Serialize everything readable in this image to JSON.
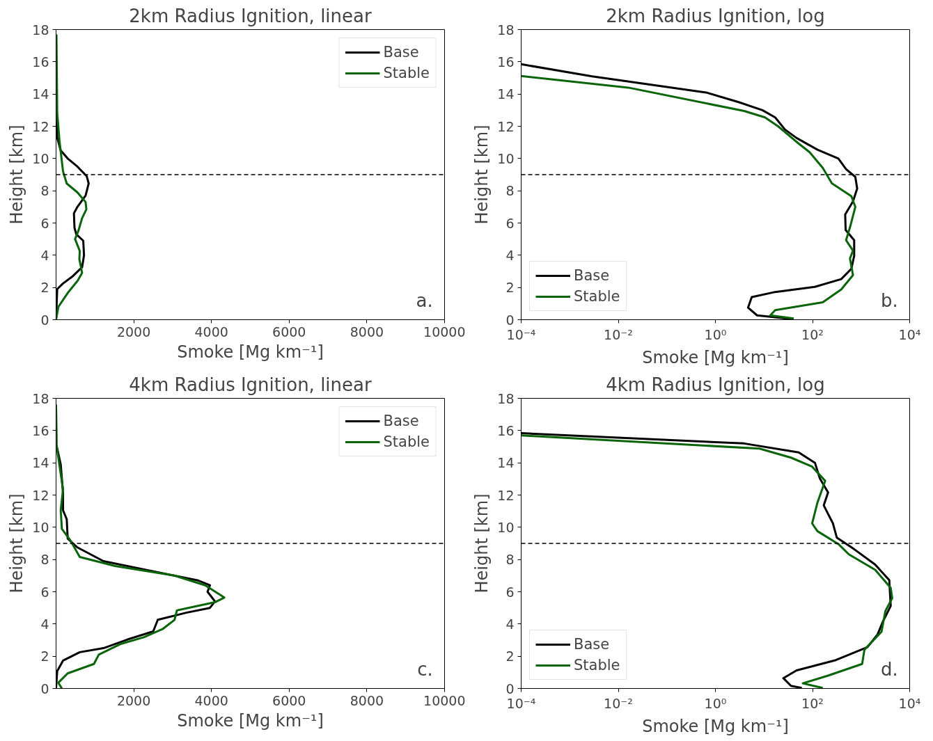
{
  "chart_data": [
    {
      "type": "line",
      "title": "2km Radius Ignition, linear",
      "xlabel": "Smoke [Mg km⁻¹]",
      "ylabel": "Height [km]",
      "xlim": [
        0,
        10000
      ],
      "xticks": [
        2000,
        4000,
        6000,
        8000,
        10000
      ],
      "ylim": [
        0,
        18
      ],
      "yticks": [
        0,
        2,
        4,
        6,
        8,
        10,
        12,
        14,
        16,
        18
      ],
      "legend": "top right",
      "annotations": [
        "a."
      ],
      "ref_lines": [
        {
          "axis": "y",
          "value": 9,
          "color": "#000000",
          "line_style": "dashed"
        }
      ],
      "series": [
        {
          "name": "Base",
          "color": "#000000",
          "x": [
            0,
            10,
            30,
            120,
            300,
            550,
            790,
            840,
            760,
            550,
            460,
            475,
            520,
            700,
            720,
            670,
            430,
            180,
            30,
            0
          ],
          "values": [
            17.5,
            13,
            11.3,
            10.5,
            10.0,
            9.5,
            8.9,
            8.45,
            7.7,
            7.0,
            6.6,
            5.7,
            5.3,
            4.9,
            4.0,
            3.25,
            2.7,
            2.25,
            1.9,
            0
          ]
        },
        {
          "name": "Stable",
          "color": "#0a640a",
          "x": [
            10,
            30,
            90,
            180,
            275,
            550,
            760,
            780,
            670,
            580,
            490,
            610,
            600,
            670,
            550,
            300,
            60,
            0
          ],
          "values": [
            17.7,
            12.8,
            11.05,
            9.2,
            8.45,
            7.9,
            7.3,
            6.85,
            6.3,
            5.55,
            5.0,
            4.26,
            3.76,
            2.9,
            2.4,
            1.66,
            0.8,
            0
          ]
        }
      ]
    },
    {
      "type": "line",
      "title": "2km Radius Ignition, log",
      "xlabel": "Smoke [Mg km⁻¹]",
      "ylabel": "Height [km]",
      "log": "x",
      "xlim": [
        0.0001,
        10000
      ],
      "xticks": [
        {
          "value": 0.0001,
          "label": "10⁻⁴"
        },
        {
          "value": 0.01,
          "label": "10⁻²"
        },
        {
          "value": 1,
          "label": "10⁰"
        },
        {
          "value": 100,
          "label": "10²"
        },
        {
          "value": 10000,
          "label": "10⁴"
        }
      ],
      "ylim": [
        0,
        18
      ],
      "yticks": [
        0,
        2,
        4,
        6,
        8,
        10,
        12,
        14,
        16,
        18
      ],
      "legend": "bottom left",
      "annotations": [
        "b."
      ],
      "ref_lines": [
        {
          "axis": "y",
          "value": 9,
          "color": "#000000",
          "line_style": "dashed"
        }
      ],
      "series": [
        {
          "name": "Base",
          "color": "#000000",
          "x": [
            0.0001,
            0.0029,
            0.68,
            3.0,
            9.3,
            17,
            27,
            47,
            126,
            340,
            490,
            760,
            830,
            680,
            470,
            480,
            720,
            720,
            630,
            390,
            112,
            17,
            5.6,
            4.7,
            7.2,
            41
          ],
          "values": [
            15.85,
            15.1,
            14.08,
            13.5,
            13.0,
            12.55,
            11.8,
            11.27,
            10.55,
            10.0,
            9.34,
            8.86,
            8.14,
            7.34,
            6.53,
            5.57,
            4.93,
            3.96,
            3.16,
            2.52,
            2.04,
            1.72,
            1.4,
            0.75,
            0.27,
            0.03
          ]
        },
        {
          "name": "Stable",
          "color": "#0a640a",
          "x": [
            0.0001,
            0.016,
            3.9,
            10.5,
            19.5,
            47,
            87,
            162,
            250,
            630,
            760,
            590,
            490,
            680,
            590,
            680,
            390,
            162,
            17,
            13.5,
            41
          ],
          "values": [
            15.12,
            14.4,
            12.95,
            12.55,
            12.0,
            11.03,
            10.39,
            9.42,
            8.46,
            7.66,
            7.0,
            5.73,
            4.93,
            4.29,
            3.8,
            2.76,
            1.88,
            1.08,
            0.59,
            0.27,
            0.08
          ]
        }
      ]
    },
    {
      "type": "line",
      "title": "4km Radius Ignition, linear",
      "xlabel": "Smoke [Mg km⁻¹]",
      "ylabel": "Height [km]",
      "xlim": [
        0,
        10000
      ],
      "xticks": [
        2000,
        4000,
        6000,
        8000,
        10000
      ],
      "ylim": [
        0,
        18
      ],
      "yticks": [
        0,
        2,
        4,
        6,
        8,
        10,
        12,
        14,
        16,
        18
      ],
      "legend": "top right",
      "annotations": [
        "c."
      ],
      "ref_lines": [
        {
          "axis": "y",
          "value": 9,
          "color": "#000000",
          "line_style": "dashed"
        }
      ],
      "series": [
        {
          "name": "Base",
          "color": "#000000",
          "x": [
            0,
            10,
            120,
            180,
            180,
            275,
            300,
            550,
            1220,
            2440,
            3660,
            3960,
            3900,
            4090,
            3960,
            3350,
            2620,
            2500,
            1830,
            1220,
            610,
            180,
            30,
            0
          ],
          "values": [
            17.6,
            15.1,
            13.9,
            12.1,
            11.05,
            10.5,
            9.3,
            8.75,
            7.9,
            7.3,
            6.7,
            6.4,
            6.0,
            5.4,
            5.0,
            4.7,
            4.26,
            3.54,
            3.03,
            2.5,
            2.25,
            1.73,
            1.08,
            0
          ]
        },
        {
          "name": "Stable",
          "color": "#0a640a",
          "x": [
            0,
            10,
            180,
            120,
            150,
            365,
            610,
            1520,
            3050,
            3840,
            4330,
            4090,
            3110,
            3050,
            2740,
            2260,
            1650,
            1100,
            975,
            300,
            60,
            150
          ],
          "values": [
            17.6,
            15.1,
            12.35,
            11.05,
            9.9,
            9.2,
            8.16,
            7.6,
            7.0,
            6.4,
            5.64,
            5.35,
            4.84,
            4.26,
            3.68,
            3.18,
            2.75,
            2.1,
            1.52,
            0.94,
            0.36,
            0
          ]
        }
      ]
    },
    {
      "type": "line",
      "title": "4km Radius Ignition, log",
      "xlabel": "Smoke [Mg km⁻¹]",
      "ylabel": "Height [km]",
      "log": "x",
      "xlim": [
        0.0001,
        10000
      ],
      "xticks": [
        {
          "value": 0.0001,
          "label": "10⁻⁴"
        },
        {
          "value": 0.01,
          "label": "10⁻²"
        },
        {
          "value": 1,
          "label": "10⁰"
        },
        {
          "value": 100,
          "label": "10²"
        },
        {
          "value": 10000,
          "label": "10⁴"
        }
      ],
      "ylim": [
        0,
        18
      ],
      "yticks": [
        0,
        2,
        4,
        6,
        8,
        10,
        12,
        14,
        16,
        18
      ],
      "legend": "bottom left",
      "annotations": [
        "d."
      ],
      "ref_lines": [
        {
          "axis": "y",
          "value": 9,
          "color": "#000000",
          "line_style": "dashed"
        }
      ],
      "series": [
        {
          "name": "Base",
          "color": "#000000",
          "x": [
            0.0001,
            3.9,
            52,
            112,
            141,
            209,
            170,
            263,
            316,
            720,
            1950,
            3800,
            4070,
            2820,
            2190,
            1350,
            302,
            47,
            25,
            36,
            60
          ],
          "values": [
            15.84,
            15.2,
            14.64,
            14.0,
            13.04,
            12.16,
            11.36,
            10.24,
            9.36,
            8.64,
            7.68,
            6.72,
            5.12,
            4.16,
            3.36,
            2.56,
            1.76,
            1.12,
            0.64,
            0.16,
            0.03
          ]
        },
        {
          "name": "Stable",
          "color": "#0a640a",
          "x": [
            0.0001,
            8.1,
            36,
            98,
            182,
            126,
            98,
            126,
            340,
            560,
            1950,
            4070,
            4370,
            3160,
            2630,
            1170,
            1050,
            209,
            63,
            162
          ],
          "values": [
            15.7,
            14.88,
            14.32,
            13.76,
            12.88,
            11.52,
            10.24,
            9.76,
            8.96,
            8.32,
            7.36,
            6.24,
            5.6,
            4.8,
            3.52,
            2.4,
            1.52,
            0.8,
            0.32,
            0.03
          ]
        }
      ]
    }
  ]
}
